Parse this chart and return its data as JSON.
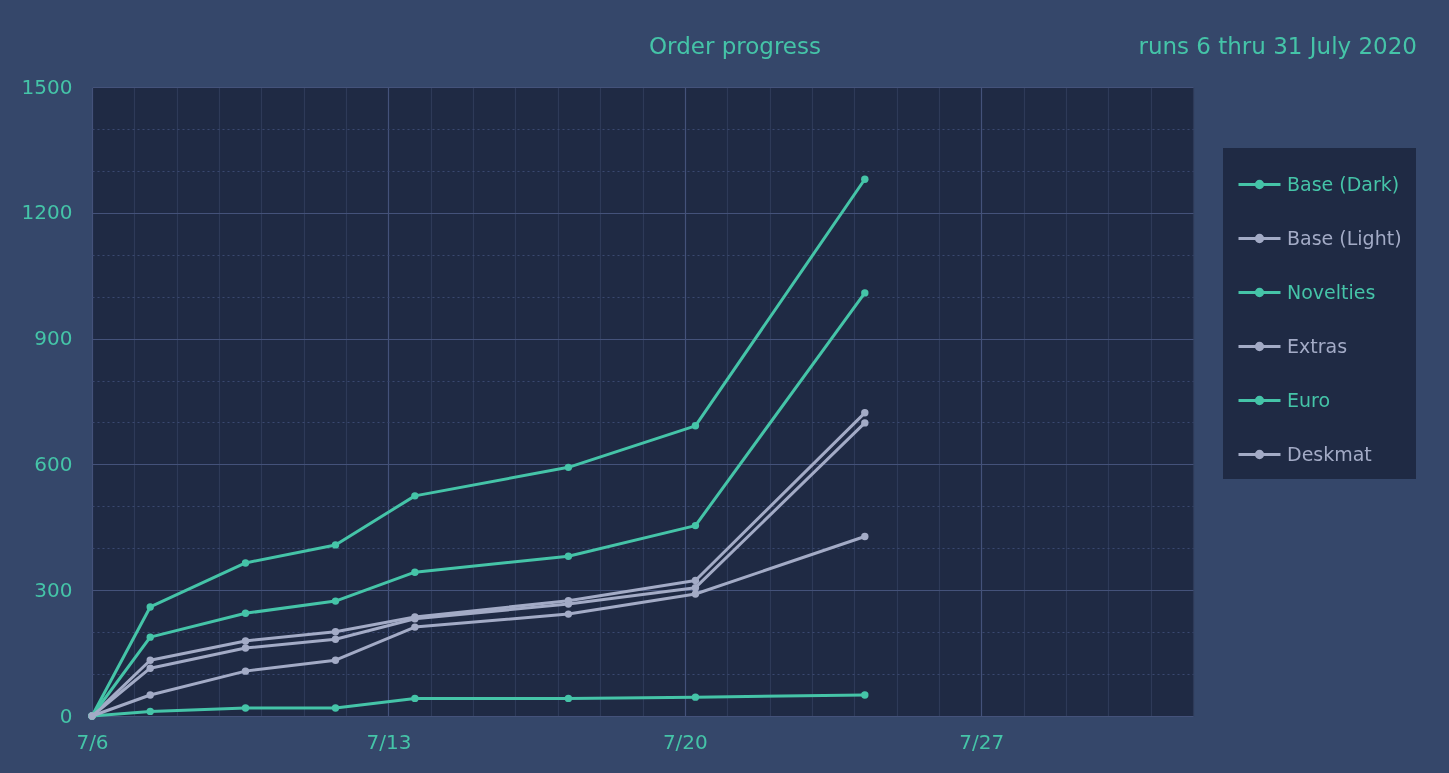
{
  "chart_data": {
    "type": "line",
    "title": "Order progress",
    "subtitle": "runs 6 thru 31 July 2020",
    "x": [
      "2020-07-06",
      "2020-07-07T09:00",
      "2020-07-09T15:00",
      "2020-07-11T18:00",
      "2020-07-13T15:00",
      "2020-07-17T06:00",
      "2020-07-20T06:00",
      "2020-07-24T06:00"
    ],
    "series": [
      {
        "name": "Base (Dark)",
        "color": "#45c4a8",
        "values": [
          0,
          260,
          365,
          408,
          525,
          593,
          692,
          1280
        ]
      },
      {
        "name": "Base (Light)",
        "color": "#a3abc6",
        "values": [
          0,
          133,
          179,
          201,
          236,
          275,
          323,
          723
        ]
      },
      {
        "name": "Novelties",
        "color": "#45c4a8",
        "values": [
          0,
          188,
          245,
          274,
          343,
          381,
          454,
          1009
        ]
      },
      {
        "name": "Extras",
        "color": "#a3abc6",
        "values": [
          0,
          114,
          162,
          183,
          232,
          267,
          306,
          699
        ]
      },
      {
        "name": "Euro",
        "color": "#45c4a8",
        "values": [
          0,
          11,
          19,
          19,
          42,
          42,
          45,
          50
        ]
      },
      {
        "name": "Deskmat",
        "color": "#a3abc6",
        "values": [
          0,
          50,
          107,
          133,
          212,
          243,
          291,
          428
        ]
      }
    ],
    "xlim": [
      "2020-07-06",
      "2020-08-01"
    ],
    "xticks": [
      {
        "value": "2020-07-06",
        "label": "7/6"
      },
      {
        "value": "2020-07-07",
        "label": null
      },
      {
        "value": "2020-07-08",
        "label": null
      },
      {
        "value": "2020-07-09",
        "label": null
      },
      {
        "value": "2020-07-10",
        "label": null
      },
      {
        "value": "2020-07-11",
        "label": null
      },
      {
        "value": "2020-07-12",
        "label": null
      },
      {
        "value": "2020-07-13",
        "label": "7/13"
      },
      {
        "value": "2020-07-14",
        "label": null
      },
      {
        "value": "2020-07-15",
        "label": null
      },
      {
        "value": "2020-07-16",
        "label": null
      },
      {
        "value": "2020-07-17",
        "label": null
      },
      {
        "value": "2020-07-18",
        "label": null
      },
      {
        "value": "2020-07-19",
        "label": null
      },
      {
        "value": "2020-07-20",
        "label": "7/20"
      },
      {
        "value": "2020-07-21",
        "label": null
      },
      {
        "value": "2020-07-22",
        "label": null
      },
      {
        "value": "2020-07-23",
        "label": null
      },
      {
        "value": "2020-07-24",
        "label": null
      },
      {
        "value": "2020-07-25",
        "label": null
      },
      {
        "value": "2020-07-26",
        "label": null
      },
      {
        "value": "2020-07-27",
        "label": "7/27"
      },
      {
        "value": "2020-07-28",
        "label": null
      },
      {
        "value": "2020-07-29",
        "label": null
      },
      {
        "value": "2020-07-30",
        "label": null
      },
      {
        "value": "2020-07-31",
        "label": null
      },
      {
        "value": "2020-08-01",
        "label": null
      }
    ],
    "ylim": [
      0,
      1500
    ],
    "yticks": [
      0,
      {
        "value": 100,
        "label": null
      },
      {
        "value": 200,
        "label": null
      },
      300,
      {
        "value": 400,
        "label": null
      },
      {
        "value": 500,
        "label": null
      },
      600,
      {
        "value": 700,
        "label": null
      },
      {
        "value": 800,
        "label": null
      },
      900,
      {
        "value": 1000,
        "label": null
      },
      {
        "value": 1100,
        "label": null
      },
      1200,
      {
        "value": 1300,
        "label": null
      },
      {
        "value": 1400,
        "label": null
      },
      1500
    ],
    "grid": true,
    "legend": "right",
    "marker": "circle",
    "line_style": "solid"
  }
}
